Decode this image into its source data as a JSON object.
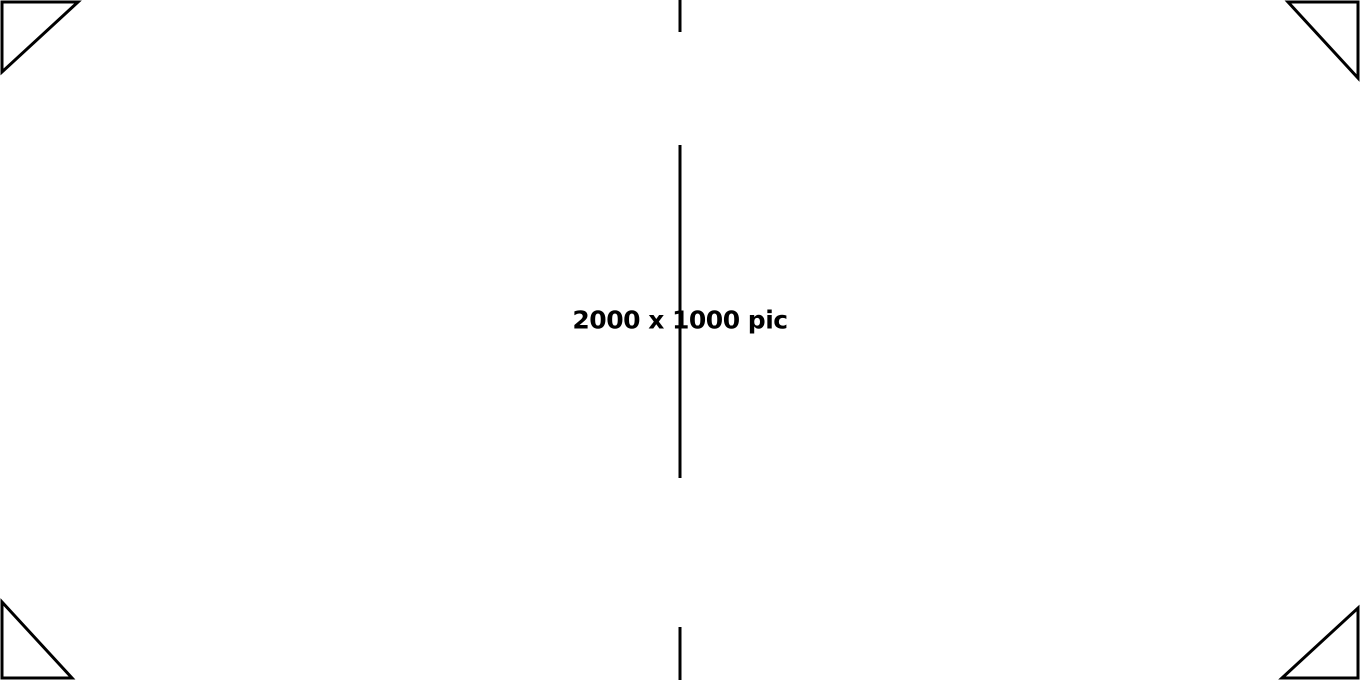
{
  "canvas": {
    "label": "2000 x 1000 pic"
  },
  "colors": {
    "background": "#ffffff",
    "stroke": "#000000"
  }
}
